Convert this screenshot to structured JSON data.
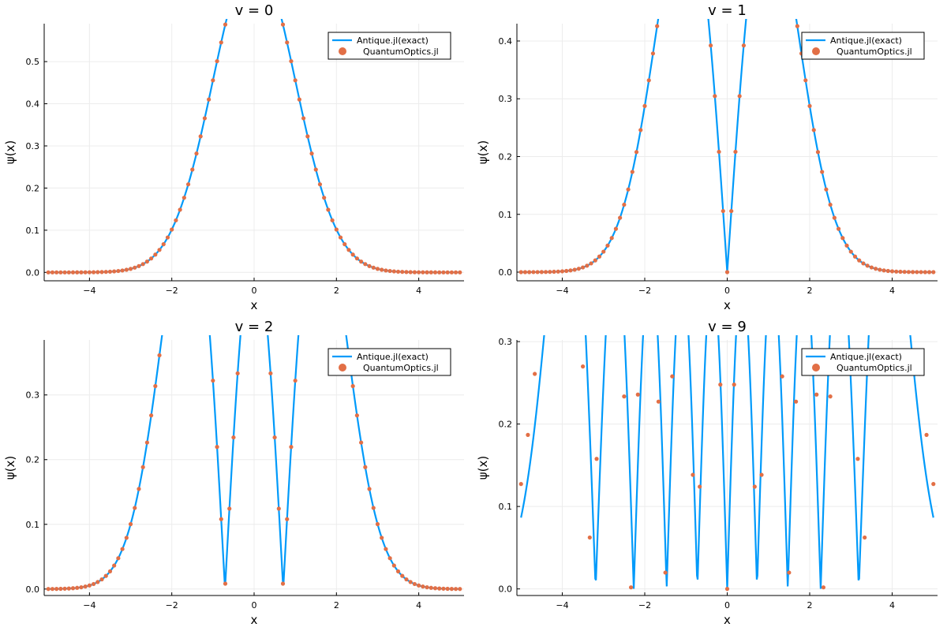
{
  "colors": {
    "exact": "#009AFA",
    "numeric": "#E26F46",
    "grid": "#ececec",
    "axis": "#000000"
  },
  "chart_data": [
    {
      "type": "line",
      "title": "v = 0",
      "xlabel": "x",
      "ylabel": "ψ(x)",
      "xlim": [
        -5.1,
        5.1
      ],
      "ylim": [
        -0.02,
        0.59
      ],
      "xticks": [
        -4,
        -2,
        0,
        2,
        4
      ],
      "xtick_labels": [
        "−4",
        "−2",
        "0",
        "2",
        "4"
      ],
      "yticks": [
        0.0,
        0.1,
        0.2,
        0.3,
        0.4,
        0.5
      ],
      "ytick_labels": [
        "0.0",
        "0.1",
        "0.2",
        "0.3",
        "0.4",
        "0.5"
      ],
      "grid": true,
      "legend": "top-right",
      "series": [
        {
          "name": "Antique.jl(exact)",
          "kind": "line",
          "n": 0,
          "x_range": [
            -5,
            5
          ]
        },
        {
          "name": "QuantumOptics.jl",
          "kind": "scatter",
          "n": 0,
          "x_range": [
            -5,
            5
          ],
          "points": 101
        }
      ]
    },
    {
      "type": "line",
      "title": "v = 1",
      "xlabel": "x",
      "ylabel": "ψ(x)",
      "xlim": [
        -5.1,
        5.1
      ],
      "ylim": [
        -0.015,
        0.43
      ],
      "xticks": [
        -4,
        -2,
        0,
        2,
        4
      ],
      "xtick_labels": [
        "−4",
        "−2",
        "0",
        "2",
        "4"
      ],
      "yticks": [
        0.0,
        0.1,
        0.2,
        0.3,
        0.4
      ],
      "ytick_labels": [
        "0.0",
        "0.1",
        "0.2",
        "0.3",
        "0.4"
      ],
      "grid": true,
      "legend": "top-right",
      "series": [
        {
          "name": "Antique.jl(exact)",
          "kind": "line",
          "n": 1,
          "x_range": [
            -5,
            5
          ]
        },
        {
          "name": "QuantumOptics.jl",
          "kind": "scatter",
          "n": 1,
          "x_range": [
            -5,
            5
          ],
          "points": 101
        }
      ]
    },
    {
      "type": "line",
      "title": "v = 2",
      "xlabel": "x",
      "ylabel": "ψ(x)",
      "xlim": [
        -5.1,
        5.1
      ],
      "ylim": [
        -0.01,
        0.385
      ],
      "xticks": [
        -4,
        -2,
        0,
        2,
        4
      ],
      "xtick_labels": [
        "−4",
        "−2",
        "0",
        "2",
        "4"
      ],
      "yticks": [
        0.0,
        0.1,
        0.2,
        0.3
      ],
      "ytick_labels": [
        "0.0",
        "0.1",
        "0.2",
        "0.3"
      ],
      "grid": true,
      "legend": "top-right",
      "series": [
        {
          "name": "Antique.jl(exact)",
          "kind": "line",
          "n": 2,
          "x_range": [
            -5,
            5
          ]
        },
        {
          "name": "QuantumOptics.jl",
          "kind": "scatter",
          "n": 2,
          "x_range": [
            -5,
            5
          ],
          "points": 101
        }
      ]
    },
    {
      "type": "line",
      "title": "v = 9",
      "xlabel": "x",
      "ylabel": "ψ(x)",
      "xlim": [
        -5.1,
        5.1
      ],
      "ylim": [
        -0.008,
        0.302
      ],
      "xticks": [
        -4,
        -2,
        0,
        2,
        4
      ],
      "xtick_labels": [
        "−4",
        "−2",
        "0",
        "2",
        "4"
      ],
      "yticks": [
        0.0,
        0.1,
        0.2,
        0.3
      ],
      "ytick_labels": [
        "0.0",
        "0.1",
        "0.2",
        "0.3"
      ],
      "grid": true,
      "legend": "top-right",
      "series": [
        {
          "name": "Antique.jl(exact)",
          "kind": "line",
          "n": 9,
          "x_range": [
            -5,
            5
          ]
        },
        {
          "name": "QuantumOptics.jl",
          "kind": "scatter",
          "n": 9,
          "x_range": [
            -5,
            5
          ],
          "points": 61,
          "drift": 1.03
        }
      ]
    }
  ]
}
